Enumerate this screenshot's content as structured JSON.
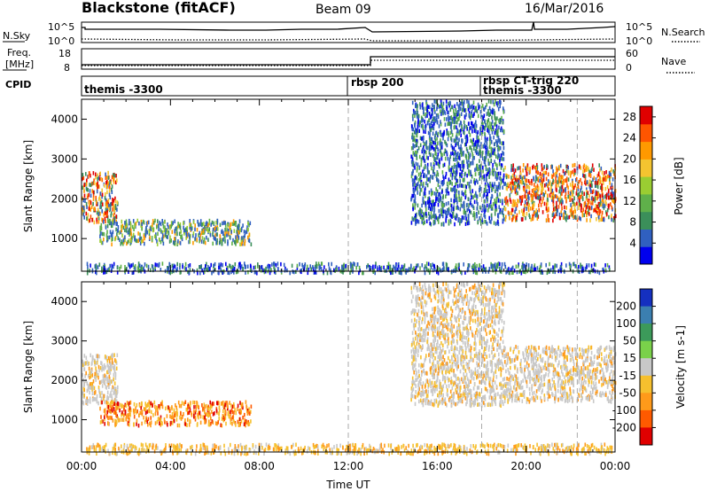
{
  "header": {
    "station": "Blackstone (fitACF)",
    "beam": "Beam 09",
    "date": "16/Mar/2016"
  },
  "noise_panel": {
    "left_label": "N.Sky",
    "right_label": "N.Search",
    "left_ticks": [
      "10^5",
      "10^0"
    ],
    "right_ticks": [
      "10^5",
      "10^0"
    ]
  },
  "freq_panel": {
    "left_label_1": "Freq.",
    "left_label_2": "[MHz]",
    "right_label": "Nave",
    "left_ticks": [
      "18",
      "8"
    ],
    "right_ticks": [
      "60",
      "0"
    ]
  },
  "cpid_panel": {
    "label": "CPID",
    "programs": [
      {
        "name": "themis -3300",
        "start_hr": 0.0
      },
      {
        "name": "rbsp 200",
        "start_hr": 12.0
      },
      {
        "name": "rbsp CT-trig 220",
        "start_hr": 18.0
      },
      {
        "name": "themis -3300",
        "start_hr": 18.0
      }
    ]
  },
  "chart_data": [
    {
      "type": "heatmap",
      "title": "Power",
      "xlabel": "Time UT",
      "ylabel": "Slant Range [km]",
      "xlim": [
        0,
        24
      ],
      "ylim": [
        180,
        4500
      ],
      "x_ticks": [
        "00:00",
        "04:00",
        "08:00",
        "12:00",
        "16:00",
        "20:00",
        "00:00"
      ],
      "x_tick_values": [
        0,
        4,
        8,
        12,
        16,
        20,
        24
      ],
      "y_ticks": [
        1000,
        2000,
        3000,
        4000
      ],
      "colorbar": {
        "label": "Power [dB]",
        "ticks": [
          4,
          8,
          12,
          16,
          20,
          24,
          28
        ],
        "range": [
          0,
          30
        ],
        "colors": [
          "#0000ee",
          "#3060c0",
          "#3b8f5a",
          "#5fb04a",
          "#9acd32",
          "#f4c430",
          "#ff9900",
          "#ff5500",
          "#e00000"
        ]
      },
      "regions": [
        {
          "t0": 0.0,
          "t1": 1.6,
          "r0": 1450,
          "r1": 2700,
          "level": "high"
        },
        {
          "t0": 0.8,
          "t1": 7.6,
          "r0": 900,
          "r1": 1500,
          "level": "mid"
        },
        {
          "t0": 0.2,
          "t1": 23.9,
          "r0": 180,
          "r1": 420,
          "level": "low"
        },
        {
          "t0": 14.8,
          "t1": 19.0,
          "r0": 1400,
          "r1": 4500,
          "level": "low"
        },
        {
          "t0": 19.0,
          "t1": 24.0,
          "r0": 1500,
          "r1": 2900,
          "level": "high"
        }
      ]
    },
    {
      "type": "heatmap",
      "title": "Velocity",
      "xlabel": "Time UT",
      "ylabel": "Slant Range [km]",
      "xlim": [
        0,
        24
      ],
      "ylim": [
        180,
        4500
      ],
      "x_ticks": [
        "00:00",
        "04:00",
        "08:00",
        "12:00",
        "16:00",
        "20:00",
        "00:00"
      ],
      "x_tick_values": [
        0,
        4,
        8,
        12,
        16,
        20,
        24
      ],
      "y_ticks": [
        1000,
        2000,
        3000,
        4000
      ],
      "colorbar": {
        "label": "Velocity [m s-1]",
        "ticks": [
          200,
          100,
          50,
          15,
          -15,
          -50,
          -100,
          -200
        ],
        "colors": [
          "#1530c0",
          "#3b7fb0",
          "#3c9a5a",
          "#7ad14a",
          "#c8c8c8",
          "#f6c02e",
          "#ff9a1a",
          "#ff5a00",
          "#e00000"
        ]
      },
      "regions": [
        {
          "t0": 0.0,
          "t1": 1.6,
          "r0": 1450,
          "r1": 2700,
          "level": "grey"
        },
        {
          "t0": 0.8,
          "t1": 7.6,
          "r0": 900,
          "r1": 1500,
          "level": "orange"
        },
        {
          "t0": 0.2,
          "t1": 23.9,
          "r0": 180,
          "r1": 420,
          "level": "yellow"
        },
        {
          "t0": 14.8,
          "t1": 19.0,
          "r0": 1400,
          "r1": 4500,
          "level": "grey"
        },
        {
          "t0": 19.0,
          "t1": 24.0,
          "r0": 1500,
          "r1": 2900,
          "level": "grey"
        }
      ]
    }
  ]
}
